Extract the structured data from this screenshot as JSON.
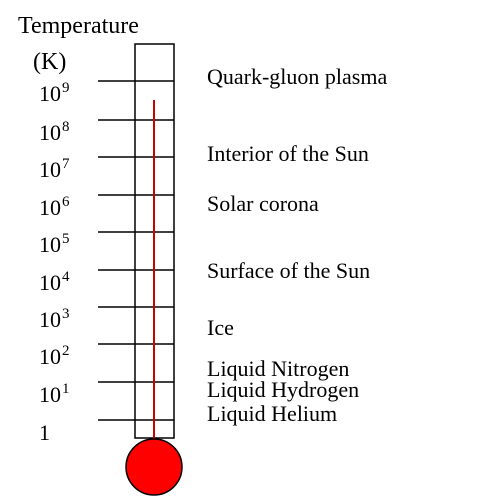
{
  "axis": {
    "title": "Temperature",
    "unit": "(K)"
  },
  "ticks": [
    {
      "base": "10",
      "exp": "9"
    },
    {
      "base": "10",
      "exp": "8"
    },
    {
      "base": "10",
      "exp": "7"
    },
    {
      "base": "10",
      "exp": "6"
    },
    {
      "base": "10",
      "exp": "5"
    },
    {
      "base": "10",
      "exp": "4"
    },
    {
      "base": "10",
      "exp": "3"
    },
    {
      "base": "10",
      "exp": "2"
    },
    {
      "base": "10",
      "exp": "1"
    },
    {
      "base": "1",
      "exp": ""
    }
  ],
  "regions": [
    {
      "label": "Quark-gluon plasma"
    },
    {
      "label": "Interior of  the Sun"
    },
    {
      "label": "Solar corona"
    },
    {
      "label": "Surface of  the Sun"
    },
    {
      "label": "Ice"
    },
    {
      "label": "Liquid Nitrogen"
    },
    {
      "label": "Liquid Hydrogen"
    },
    {
      "label": "Liquid Helium"
    }
  ],
  "colors": {
    "mercury": "#ff0000",
    "column": "#cc0000",
    "outline": "#000000"
  }
}
